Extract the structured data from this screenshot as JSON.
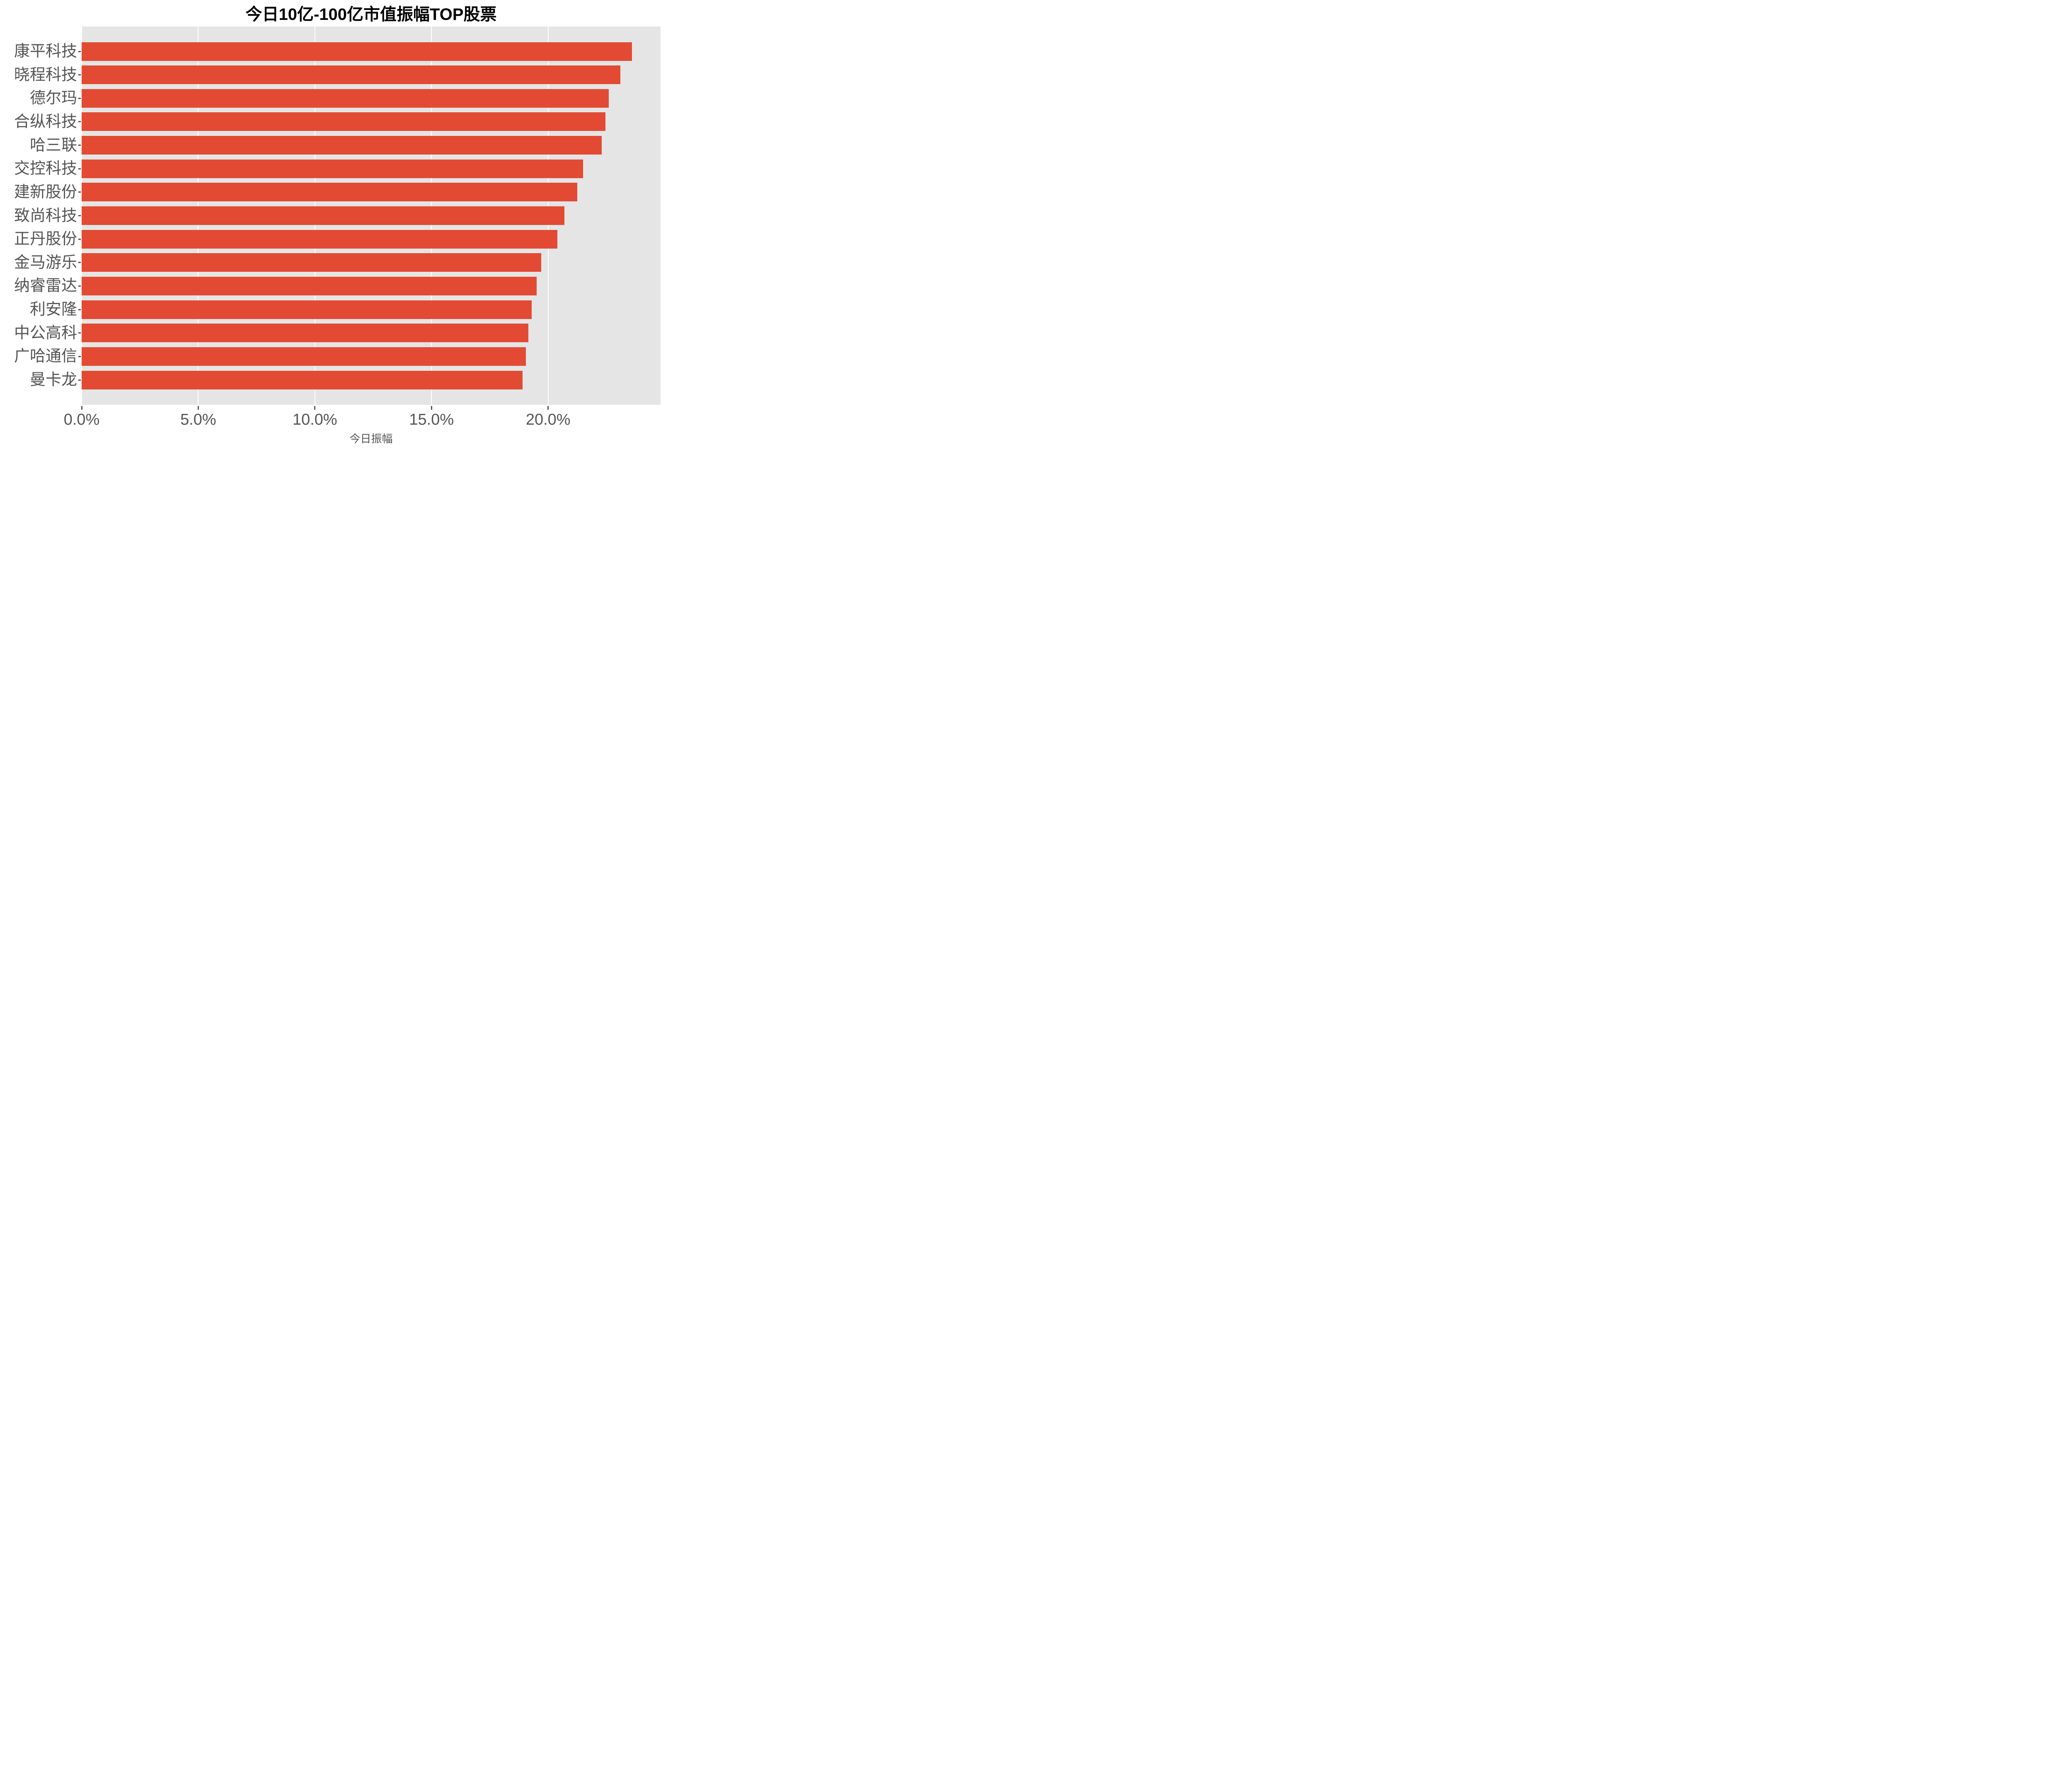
{
  "chart_data": {
    "type": "bar",
    "orientation": "horizontal",
    "title": "今日10亿-100亿市值振幅TOP股票",
    "xlabel": "今日振幅",
    "ylabel": "",
    "categories": [
      "康平科技",
      "晓程科技",
      "德尔玛",
      "合纵科技",
      "哈三联",
      "交控科技",
      "建新股份",
      "致尚科技",
      "正丹股份",
      "金马游乐",
      "纳睿雷达",
      "利安隆",
      "中公高科",
      "广哈通信",
      "曼卡龙"
    ],
    "values": [
      23.6,
      23.1,
      22.6,
      22.45,
      22.3,
      21.5,
      21.25,
      20.7,
      20.4,
      19.7,
      19.5,
      19.3,
      19.15,
      19.05,
      18.9
    ],
    "unit": "%",
    "xlim": [
      0,
      24.82
    ],
    "xticks": {
      "values": [
        0,
        5,
        10,
        15,
        20
      ],
      "labels": [
        "0.0%",
        "5.0%",
        "10.0%",
        "15.0%",
        "20.0%"
      ]
    },
    "grid": "major-x white, on",
    "legend": "none",
    "bar_color": "#E24A33",
    "panel_color": "#E5E5E5",
    "tick_text_color": "#555555",
    "title_color": "#000000"
  }
}
